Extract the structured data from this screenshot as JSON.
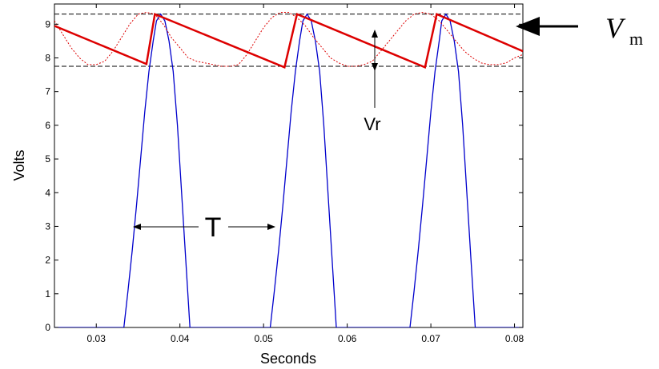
{
  "chart_data": {
    "type": "line",
    "title": "",
    "xlabel": "Seconds",
    "ylabel": "Volts",
    "xlim": [
      0.025,
      0.081
    ],
    "ylim": [
      0,
      9.6
    ],
    "x_ticks": [
      0.03,
      0.04,
      0.05,
      0.06,
      0.07,
      0.08
    ],
    "x_tick_labels": [
      "0.03",
      "0.04",
      "0.05",
      "0.06",
      "0.07",
      "0.08"
    ],
    "y_ticks": [
      0,
      1,
      2,
      3,
      4,
      5,
      6,
      7,
      8,
      9
    ],
    "y_tick_labels": [
      "0",
      "1",
      "2",
      "3",
      "4",
      "5",
      "6",
      "7",
      "8",
      "9"
    ],
    "grid": false,
    "legend": "none",
    "colors": {
      "rectified": "#0000cc",
      "output": "#dd0000",
      "reference": "#000000"
    },
    "series": [
      {
        "style": "solid-blue",
        "x": [
          0.025,
          0.0333,
          0.0338,
          0.0343,
          0.0348,
          0.0353,
          0.0358,
          0.0363,
          0.0368,
          0.0372,
          0.0377,
          0.0382,
          0.0387,
          0.0392,
          0.0397,
          0.0402,
          0.0407,
          0.0412,
          0.05,
          0.0508,
          0.0513,
          0.0518,
          0.0523,
          0.0528,
          0.0533,
          0.0538,
          0.0543,
          0.0547,
          0.0552,
          0.0557,
          0.0562,
          0.0567,
          0.0572,
          0.0577,
          0.0582,
          0.0587,
          0.0667,
          0.0675,
          0.068,
          0.0685,
          0.069,
          0.0695,
          0.07,
          0.0705,
          0.071,
          0.0713,
          0.0718,
          0.0723,
          0.0728,
          0.0733,
          0.0738,
          0.0743,
          0.0748,
          0.0753,
          0.081
        ],
        "y": [
          0,
          0,
          1.1,
          2.3,
          3.6,
          5.0,
          6.4,
          7.6,
          8.5,
          9.1,
          9.3,
          9.1,
          8.5,
          7.6,
          6.0,
          4.0,
          2.0,
          0,
          0,
          0,
          1.1,
          2.3,
          3.6,
          5.0,
          6.4,
          7.6,
          8.5,
          9.1,
          9.3,
          9.1,
          8.5,
          7.6,
          6.0,
          4.0,
          2.0,
          0,
          0,
          0,
          1.1,
          2.3,
          3.6,
          5.0,
          6.4,
          7.6,
          8.5,
          9.1,
          9.3,
          9.1,
          8.5,
          7.6,
          6.0,
          4.0,
          2.0,
          0,
          0
        ]
      },
      {
        "style": "solid-red",
        "x": [
          0.025,
          0.036,
          0.037,
          0.0525,
          0.054,
          0.0693,
          0.0707,
          0.081
        ],
        "y": [
          8.95,
          7.82,
          9.3,
          7.72,
          9.3,
          7.72,
          9.3,
          8.2
        ]
      },
      {
        "style": "dotted-red",
        "x": [
          0.025,
          0.026,
          0.027,
          0.028,
          0.029,
          0.03,
          0.031,
          0.032,
          0.033,
          0.034,
          0.035,
          0.036,
          0.037,
          0.038,
          0.039,
          0.04,
          0.041,
          0.042,
          0.043,
          0.044,
          0.045,
          0.046,
          0.047,
          0.048,
          0.049,
          0.05,
          0.051,
          0.052,
          0.053,
          0.054,
          0.055,
          0.056,
          0.057,
          0.058,
          0.059,
          0.06,
          0.061,
          0.062,
          0.063,
          0.064,
          0.065,
          0.066,
          0.067,
          0.068,
          0.069,
          0.07,
          0.071,
          0.072,
          0.073,
          0.074,
          0.075,
          0.076,
          0.077,
          0.078,
          0.079,
          0.08,
          0.081
        ],
        "y": [
          9.1,
          8.7,
          8.3,
          8.0,
          7.8,
          7.8,
          7.9,
          8.2,
          8.6,
          9.0,
          9.3,
          9.35,
          9.3,
          9.0,
          8.6,
          8.3,
          8.0,
          7.9,
          7.85,
          7.8,
          7.75,
          7.75,
          7.8,
          8.1,
          8.5,
          8.9,
          9.2,
          9.35,
          9.35,
          9.2,
          8.95,
          8.6,
          8.3,
          8.0,
          7.85,
          7.75,
          7.75,
          7.8,
          7.9,
          8.2,
          8.5,
          8.8,
          9.1,
          9.3,
          9.35,
          9.3,
          9.1,
          8.8,
          8.5,
          8.2,
          8.0,
          7.85,
          7.8,
          7.8,
          7.85,
          8.0,
          8.1
        ]
      }
    ],
    "reference_lines": [
      9.3,
      7.75
    ],
    "annotations": {
      "vm_main": "V",
      "vm_sub": "m",
      "vr": "Vr",
      "period": "T"
    }
  }
}
